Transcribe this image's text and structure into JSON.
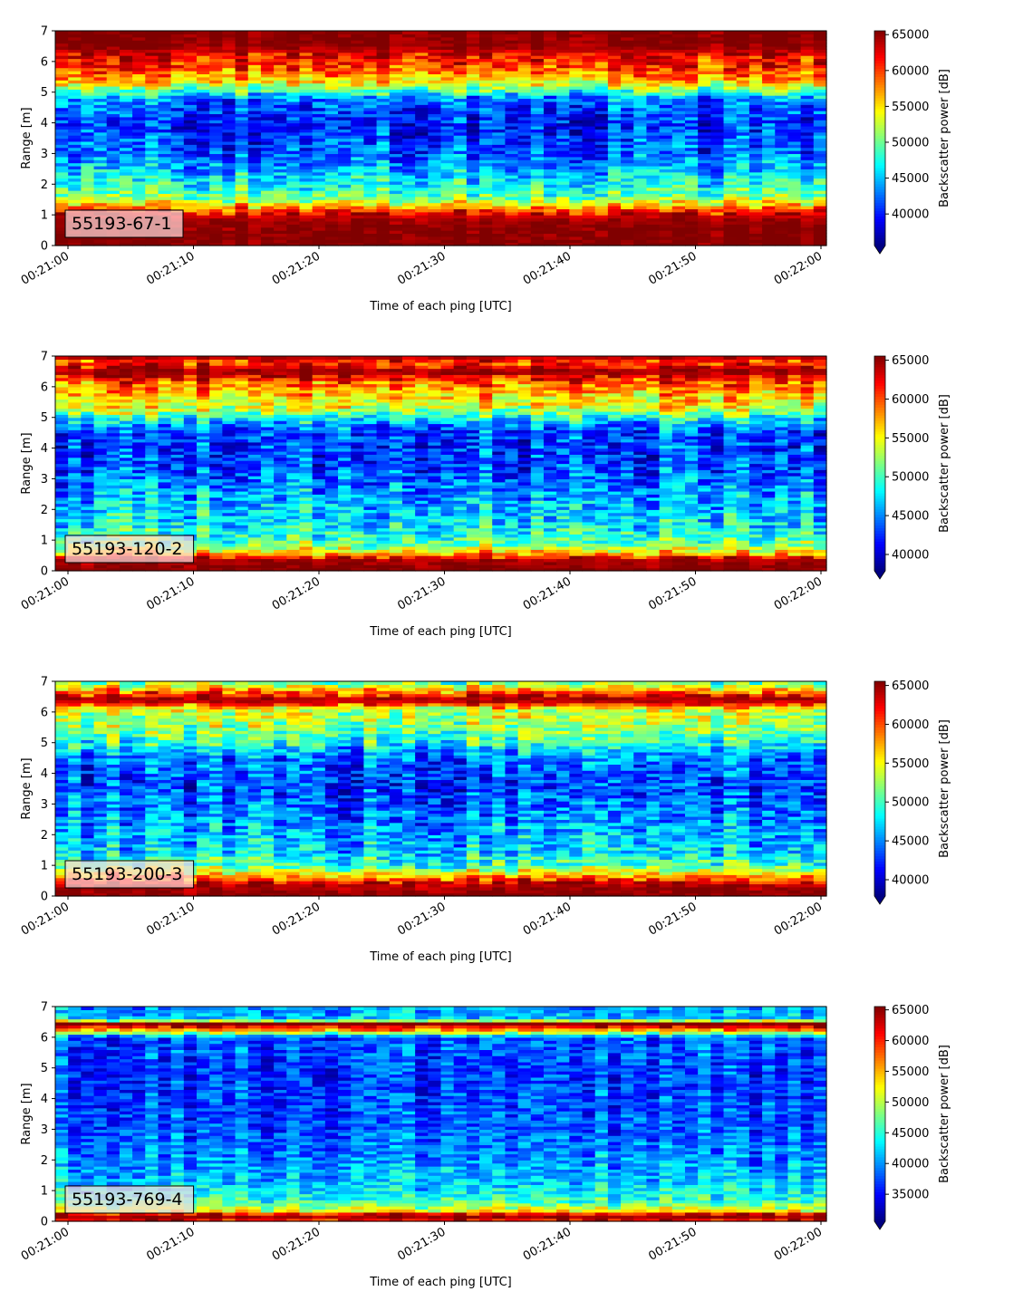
{
  "chart_data": [
    {
      "type": "heatmap",
      "label": "55193-67-1",
      "xlabel": "Time of each ping [UTC]",
      "ylabel": "Range [m]",
      "xlim": [
        "00:21:00",
        "00:22:00"
      ],
      "ylim": [
        0,
        7
      ],
      "x_ticks": [
        "00:21:00",
        "00:21:10",
        "00:21:20",
        "00:21:30",
        "00:21:40",
        "00:21:50",
        "00:22:00"
      ],
      "y_ticks": [
        0,
        1,
        2,
        3,
        4,
        5,
        6,
        7
      ],
      "colorbar": {
        "label": "Backscatter power [dB]",
        "min": 35600,
        "max": 65535,
        "ticks": [
          40000,
          45000,
          50000,
          55000,
          60000,
          65000
        ],
        "extend": "min",
        "colormap": "jet"
      },
      "profile": [
        {
          "range": 0.0,
          "value": 65535
        },
        {
          "range": 0.25,
          "value": 65535
        },
        {
          "range": 0.8,
          "value": 65000
        },
        {
          "range": 1.1,
          "value": 62000
        },
        {
          "range": 1.3,
          "value": 56000
        },
        {
          "range": 1.6,
          "value": 50000
        },
        {
          "range": 2.0,
          "value": 47000
        },
        {
          "range": 3.0,
          "value": 42000
        },
        {
          "range": 4.0,
          "value": 40000
        },
        {
          "range": 4.8,
          "value": 43000
        },
        {
          "range": 5.1,
          "value": 50000
        },
        {
          "range": 5.4,
          "value": 56000
        },
        {
          "range": 5.8,
          "value": 60000
        },
        {
          "range": 6.2,
          "value": 62000
        },
        {
          "range": 6.5,
          "value": 65000
        },
        {
          "range": 7.0,
          "value": 65535
        }
      ]
    },
    {
      "type": "heatmap",
      "label": "55193-120-2",
      "xlabel": "Time of each ping [UTC]",
      "ylabel": "Range [m]",
      "xlim": [
        "00:21:00",
        "00:22:00"
      ],
      "ylim": [
        0,
        7
      ],
      "x_ticks": [
        "00:21:00",
        "00:21:10",
        "00:21:20",
        "00:21:30",
        "00:21:40",
        "00:21:50",
        "00:22:00"
      ],
      "y_ticks": [
        0,
        1,
        2,
        3,
        4,
        5,
        6,
        7
      ],
      "colorbar": {
        "label": "Backscatter power [dB]",
        "min": 37900,
        "max": 65535,
        "ticks": [
          40000,
          45000,
          50000,
          55000,
          60000,
          65000
        ],
        "extend": "min",
        "colormap": "jet"
      },
      "profile": [
        {
          "range": 0.0,
          "value": 65535
        },
        {
          "range": 0.4,
          "value": 64500
        },
        {
          "range": 0.6,
          "value": 56000
        },
        {
          "range": 0.9,
          "value": 51000
        },
        {
          "range": 1.5,
          "value": 48000
        },
        {
          "range": 2.5,
          "value": 46000
        },
        {
          "range": 3.5,
          "value": 43000
        },
        {
          "range": 4.5,
          "value": 43000
        },
        {
          "range": 4.9,
          "value": 47000
        },
        {
          "range": 5.3,
          "value": 54000
        },
        {
          "range": 5.8,
          "value": 57000
        },
        {
          "range": 6.2,
          "value": 60000
        },
        {
          "range": 6.5,
          "value": 65535
        },
        {
          "range": 6.8,
          "value": 60000
        },
        {
          "range": 7.0,
          "value": 65000
        }
      ]
    },
    {
      "type": "heatmap",
      "label": "55193-200-3",
      "xlabel": "Time of each ping [UTC]",
      "ylabel": "Range [m]",
      "xlim": [
        "00:21:00",
        "00:22:00"
      ],
      "ylim": [
        0,
        7
      ],
      "x_ticks": [
        "00:21:00",
        "00:21:10",
        "00:21:20",
        "00:21:30",
        "00:21:40",
        "00:21:50",
        "00:22:00"
      ],
      "y_ticks": [
        0,
        1,
        2,
        3,
        4,
        5,
        6,
        7
      ],
      "colorbar": {
        "label": "Backscatter power [dB]",
        "min": 37900,
        "max": 65535,
        "ticks": [
          40000,
          45000,
          50000,
          55000,
          60000,
          65000
        ],
        "extend": "min",
        "colormap": "jet"
      },
      "profile": [
        {
          "range": 0.0,
          "value": 65535
        },
        {
          "range": 0.4,
          "value": 64000
        },
        {
          "range": 0.7,
          "value": 57000
        },
        {
          "range": 1.0,
          "value": 50000
        },
        {
          "range": 1.5,
          "value": 47000
        },
        {
          "range": 2.5,
          "value": 45000
        },
        {
          "range": 3.5,
          "value": 43000
        },
        {
          "range": 4.5,
          "value": 44000
        },
        {
          "range": 5.0,
          "value": 49000
        },
        {
          "range": 5.5,
          "value": 52000
        },
        {
          "range": 6.1,
          "value": 54000
        },
        {
          "range": 6.4,
          "value": 65535
        },
        {
          "range": 6.7,
          "value": 58000
        },
        {
          "range": 7.0,
          "value": 50000
        }
      ]
    },
    {
      "type": "heatmap",
      "label": "55193-769-4",
      "xlabel": "Time of each ping [UTC]",
      "ylabel": "Range [m]",
      "xlim": [
        "00:21:00",
        "00:22:00"
      ],
      "ylim": [
        0,
        7
      ],
      "x_ticks": [
        "00:21:00",
        "00:21:10",
        "00:21:20",
        "00:21:30",
        "00:21:40",
        "00:21:50",
        "00:22:00"
      ],
      "y_ticks": [
        0,
        1,
        2,
        3,
        4,
        5,
        6,
        7
      ],
      "colorbar": {
        "label": "Backscatter power [dB]",
        "min": 30600,
        "max": 65535,
        "ticks": [
          35000,
          40000,
          45000,
          50000,
          55000,
          60000,
          65000
        ],
        "extend": "min",
        "colormap": "jet"
      },
      "profile": [
        {
          "range": 0.0,
          "value": 60000
        },
        {
          "range": 0.2,
          "value": 65535
        },
        {
          "range": 0.35,
          "value": 52000
        },
        {
          "range": 0.7,
          "value": 45000
        },
        {
          "range": 1.2,
          "value": 42000
        },
        {
          "range": 2.0,
          "value": 40000
        },
        {
          "range": 3.0,
          "value": 38000
        },
        {
          "range": 4.5,
          "value": 37000
        },
        {
          "range": 6.0,
          "value": 38000
        },
        {
          "range": 6.3,
          "value": 60000
        },
        {
          "range": 6.45,
          "value": 65535
        },
        {
          "range": 6.6,
          "value": 42000
        },
        {
          "range": 7.0,
          "value": 40000
        }
      ]
    }
  ]
}
